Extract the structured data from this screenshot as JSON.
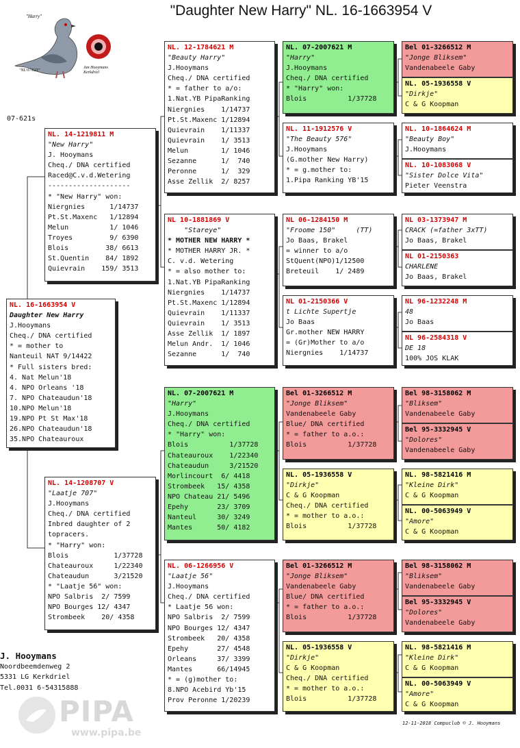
{
  "header": {
    "title": "\"Daughter New Harry\"  NL. 16-1663954 V",
    "logo_caption_top": "\"Harry\"",
    "logo_caption_left": "\"NL'07/621\"",
    "logo_caption_right": "Jan Hooymans\nKerkdriel",
    "code": "07-621s"
  },
  "cards": {
    "subject": {
      "ring": "NL. 16-1663954 V",
      "lines": [
        {
          "t": "Daughter New Harry",
          "s": "bi"
        },
        {
          "t": "J.Hooymans"
        },
        {
          "t": "Cheq./ DNA certified"
        },
        {
          "t": "* = mother to"
        },
        {
          "t": "Nanteuil NAT 9/14422"
        },
        {
          "t": "* Full sisters bred:"
        },
        {
          "t": "4. Nat Melun'18"
        },
        {
          "t": "4. NPO Orleans '18"
        },
        {
          "t": "7. NPO Chateaudun'18"
        },
        {
          "t": "10.NPO Melun'18"
        },
        {
          "t": "19.NPO Pt St Max'18"
        },
        {
          "t": "26.NPO Chateaudun'18"
        },
        {
          "t": "35.NPO Chateauroux"
        }
      ]
    },
    "sire": {
      "ring": "NL. 14-1219811 M",
      "lines": [
        {
          "t": "\"New Harry\"",
          "s": "i"
        },
        {
          "t": "J. Hooymans"
        },
        {
          "t": "Cheq./ DNA certified"
        },
        {
          "t": "Raced@C.v.d.Wetering"
        },
        {
          "t": "--------------------"
        },
        {
          "t": "* \"New Harry\" won:"
        },
        {
          "t": "Niergnies      1/14737"
        },
        {
          "t": "Pt.St.Maxenc   1/12894"
        },
        {
          "t": "Melun          1/ 1046"
        },
        {
          "t": "Troyes         9/ 6390"
        },
        {
          "t": "Blois         38/ 6613"
        },
        {
          "t": "St.Quentin    84/ 1892"
        },
        {
          "t": "Quievrain    159/ 3513"
        }
      ]
    },
    "dam": {
      "ring": "NL. 14-1208707 V",
      "lines": [
        {
          "t": "\"Laatje 707\"",
          "s": "i"
        },
        {
          "t": "J.Hooymans"
        },
        {
          "t": "Cheq./ DNA certified"
        },
        {
          "t": "Inbred daughter of 2"
        },
        {
          "t": "topracers."
        },
        {
          "t": "* \"Harry\" won:"
        },
        {
          "t": "Blois           1/37728"
        },
        {
          "t": "Chateauroux     1/22340"
        },
        {
          "t": "Chateaudun      3/21520"
        },
        {
          "t": "* \"Laatje 56\" won:"
        },
        {
          "t": "NPO Salbris  2/ 7599"
        },
        {
          "t": "NPO Bourges 12/ 4347"
        },
        {
          "t": "Strombeek    20/ 4358"
        }
      ]
    },
    "ss": {
      "ring": "NL. 12-1784621 M",
      "lines": [
        {
          "t": "\"Beauty Harry\"",
          "s": "i"
        },
        {
          "t": "J.Hooymans"
        },
        {
          "t": "Cheq./ DNA certified"
        },
        {
          "t": "* = father to a/o:"
        },
        {
          "t": "1.Nat.YB PipaRanking"
        },
        {
          "t": "Niergnies    1/14737"
        },
        {
          "t": "Pt.St.Maxenc 1/12894"
        },
        {
          "t": "Quievrain    1/11337"
        },
        {
          "t": "Quievrain    1/ 3513"
        },
        {
          "t": "Melun        1/ 1046"
        },
        {
          "t": "Sezanne      1/  740"
        },
        {
          "t": "Peronne      1/  329"
        },
        {
          "t": "Asse Zellik  2/ 8257"
        }
      ]
    },
    "sd": {
      "ring": "NL  10-1881869 V",
      "lines": [
        {
          "t": "    \"Stareye\"",
          "s": "i"
        },
        {
          "t": "* MOTHER NEW HARRY *",
          "s": "b"
        },
        {
          "t": "* MOTHER HARRY JR. *"
        },
        {
          "t": "C. v.d. Wetering"
        },
        {
          "t": "* = also mother to:"
        },
        {
          "t": "1.Nat.YB PipaRanking"
        },
        {
          "t": "Niergnies    1/14737"
        },
        {
          "t": "Pt.St.Maxenc 1/12894"
        },
        {
          "t": "Quievrain    1/11337"
        },
        {
          "t": "Quievrain    1/ 3513"
        },
        {
          "t": "Asse Zellik  1/ 1897"
        },
        {
          "t": "Melun Andr.  1/ 1046"
        },
        {
          "t": "Sezanne      1/  740"
        }
      ]
    },
    "ds": {
      "ring": "NL. 07-2007621 M",
      "lines": [
        {
          "t": "\"Harry\"",
          "s": "i"
        },
        {
          "t": "J.Hooymans"
        },
        {
          "t": "Cheq./ DNA certified"
        },
        {
          "t": "* \"Harry\" won:"
        },
        {
          "t": "Blois          1/37728"
        },
        {
          "t": "Chateauroux    1/22340"
        },
        {
          "t": "Chateaudun     3/21520"
        },
        {
          "t": "Morlincourt  6/ 4418"
        },
        {
          "t": "Strombeek   15/ 4358"
        },
        {
          "t": "NPO Chateau 21/ 5496"
        },
        {
          "t": "Epehy       23/ 3709"
        },
        {
          "t": "Nanteul     30/ 3249"
        },
        {
          "t": "Mantes      50/ 4182"
        }
      ]
    },
    "dd": {
      "ring": "NL. 06-1266956 V",
      "lines": [
        {
          "t": "\"Laatje 56\"",
          "s": "i"
        },
        {
          "t": "J.Hooymans"
        },
        {
          "t": "Cheq./ DNA certified"
        },
        {
          "t": "* Laatje 56 won:"
        },
        {
          "t": "NPO Salbris  2/ 7599"
        },
        {
          "t": "NPO Bourges 12/ 4347"
        },
        {
          "t": "Strombeek   20/ 4358"
        },
        {
          "t": "Epehy       27/ 4548"
        },
        {
          "t": "Orleans     37/ 3399"
        },
        {
          "t": "Mantes      66/14945"
        },
        {
          "t": "* = (g)mother to:"
        },
        {
          "t": "8.NPO Acebird Yb'15"
        },
        {
          "t": "Prov Peronne 1/20239"
        }
      ]
    },
    "sss": {
      "ring": "NL. 07-2007621 M",
      "lines": [
        {
          "t": "\"Harry\"",
          "s": "i"
        },
        {
          "t": "J.Hooymans"
        },
        {
          "t": "Cheq./ DNA certified"
        },
        {
          "t": "* \"Harry\" won:"
        },
        {
          "t": "Blois          1/37728"
        }
      ]
    },
    "ssd": {
      "ring": "NL. 11-1912576 V",
      "lines": [
        {
          "t": "\"The Beauty 576\"",
          "s": "i"
        },
        {
          "t": "J.Hooymans"
        },
        {
          "t": "(G.mother New Harry)"
        },
        {
          "t": "* = g.mother to:"
        },
        {
          "t": "1.Pipa Ranking YB'15"
        }
      ]
    },
    "sds": {
      "ring": "NL  06-1284150 M",
      "lines": [
        {
          "t": "\"Froome 150\"     (TT)",
          "s": "i"
        },
        {
          "t": "Jo Baas, Brakel"
        },
        {
          "t": "= winner to a/o"
        },
        {
          "t": "StQuent(NPO)1/12500"
        },
        {
          "t": "Breteuil    1/ 2489"
        }
      ]
    },
    "sdd": {
      "ring": "NL  01-2150366 V",
      "lines": [
        {
          "t": "t Lichte Supertje",
          "s": "i"
        },
        {
          "t": "Jo Baas"
        },
        {
          "t": "Gr.mother NEW HARRY"
        },
        {
          "t": "= (Gr)Mother to a/o"
        },
        {
          "t": "Niergnies    1/14737"
        }
      ]
    },
    "dss": {
      "ring": "Bel 01-3266512 M",
      "lines": [
        {
          "t": "\"Jonge Bliksem\"",
          "s": "i"
        },
        {
          "t": "Vandenabeele Gaby"
        },
        {
          "t": "Blue/ DNA certified"
        },
        {
          "t": "* = father to a.o.:"
        },
        {
          "t": "Blois          1/37728"
        }
      ]
    },
    "dsd": {
      "ring": "NL. 05-1936558 V",
      "lines": [
        {
          "t": "\"Dirkje\"",
          "s": "i"
        },
        {
          "t": "C & G Koopman"
        },
        {
          "t": "Cheq./ DNA certified"
        },
        {
          "t": "* = mother to a.o.:"
        },
        {
          "t": "Blois          1/37728"
        }
      ]
    },
    "dds": {
      "ring": "Bel 01-3266512 M",
      "lines": [
        {
          "t": "\"Jonge Bliksem\"",
          "s": "i"
        },
        {
          "t": "Vandenabeele Gaby"
        },
        {
          "t": "Blue/ DNA certified"
        },
        {
          "t": "* = father to a.o.:"
        },
        {
          "t": "Blois          1/37728"
        }
      ]
    },
    "ddd": {
      "ring": "NL. 05-1936558 V",
      "lines": [
        {
          "t": "\"Dirkje\"",
          "s": "i"
        },
        {
          "t": "C & G Koopman"
        },
        {
          "t": "Cheq./ DNA certified"
        },
        {
          "t": "* = mother to a.o.:"
        },
        {
          "t": "Blois          1/37728"
        }
      ]
    },
    "g1": {
      "ring": "Bel 01-3266512 M",
      "lines": [
        {
          "t": "\"Jonge Bliksem\"",
          "s": "i"
        },
        {
          "t": "Vandenabeele Gaby"
        }
      ]
    },
    "g2": {
      "ring": "NL. 05-1936558 V",
      "lines": [
        {
          "t": "\"Dirkje\"",
          "s": "i"
        },
        {
          "t": "C & G Koopman"
        }
      ]
    },
    "g3": {
      "ring": "NL. 10-1864624 M",
      "lines": [
        {
          "t": "\"Beauty Boy\"",
          "s": "i"
        },
        {
          "t": "J.Hooymans"
        }
      ]
    },
    "g4": {
      "ring": "NL. 10-1083068 V",
      "lines": [
        {
          "t": "\"Sister Dolce Vita\"",
          "s": "i"
        },
        {
          "t": "Pieter Veenstra"
        }
      ]
    },
    "g5": {
      "ring": "NL  03-1373947 M",
      "lines": [
        {
          "t": "CRACK (=father 3xTT)",
          "s": "i"
        },
        {
          "t": "Jo Baas, Brakel"
        }
      ]
    },
    "g6": {
      "ring": "NL  01-2150363",
      "lines": [
        {
          "t": "CHARLENE",
          "s": "i"
        },
        {
          "t": "Jo Baas, Brakel"
        }
      ]
    },
    "g7": {
      "ring": "NL  96-1232248 M",
      "lines": [
        {
          "t": "48",
          "s": "i"
        },
        {
          "t": "Jo Baas"
        }
      ]
    },
    "g8": {
      "ring": "NL  96-2584318 V",
      "lines": [
        {
          "t": "DE 18",
          "s": "i"
        },
        {
          "t": "100% JOS KLAK"
        }
      ]
    },
    "g9": {
      "ring": "Bel 98-3158062 M",
      "lines": [
        {
          "t": "\"Bliksem\"",
          "s": "i"
        },
        {
          "t": "Vandenabeele Gaby"
        }
      ]
    },
    "g10": {
      "ring": "Bel 95-3332945 V",
      "lines": [
        {
          "t": "\"Dolores\"",
          "s": "i"
        },
        {
          "t": "Vandenabeele Gaby"
        }
      ]
    },
    "g11": {
      "ring": "NL. 98-5821416 M",
      "lines": [
        {
          "t": "\"Kleine Dirk\"",
          "s": "i"
        },
        {
          "t": "C & G Koopman"
        }
      ]
    },
    "g12": {
      "ring": "NL. 00-5063949 V",
      "lines": [
        {
          "t": "\"Amore\"",
          "s": "i"
        },
        {
          "t": "C & G Koopman"
        }
      ]
    },
    "g13": {
      "ring": "Bel 98-3158062 M",
      "lines": [
        {
          "t": "\"Bliksem\"",
          "s": "i"
        },
        {
          "t": "Vandenabeele Gaby"
        }
      ]
    },
    "g14": {
      "ring": "Bel 95-3332945 V",
      "lines": [
        {
          "t": "\"Dolores\"",
          "s": "i"
        },
        {
          "t": "Vandenabeele Gaby"
        }
      ]
    },
    "g15": {
      "ring": "NL. 98-5821416 M",
      "lines": [
        {
          "t": "\"Kleine Dirk\"",
          "s": "i"
        },
        {
          "t": "C & G Koopman"
        }
      ]
    },
    "g16": {
      "ring": "NL. 00-5063949 V",
      "lines": [
        {
          "t": "\"Amore\"",
          "s": "i"
        },
        {
          "t": "C & G Koopman"
        }
      ]
    }
  },
  "owner": {
    "name": "J. Hooymans",
    "address": "Noordbeemdenweg 2",
    "city": "5331 LG  Kerkdriel",
    "tel": "Tel.0031 6-54315888"
  },
  "footer": "12-11-2018   Compuclub © J. Hooymans",
  "watermark": {
    "text": "PIPA",
    "url": "www.pipa.be"
  },
  "colors": {
    "ring_red": "#d20000",
    "card_green": "#90ee90",
    "card_red": "#f39a9a",
    "card_yellow": "#ffffb0"
  }
}
